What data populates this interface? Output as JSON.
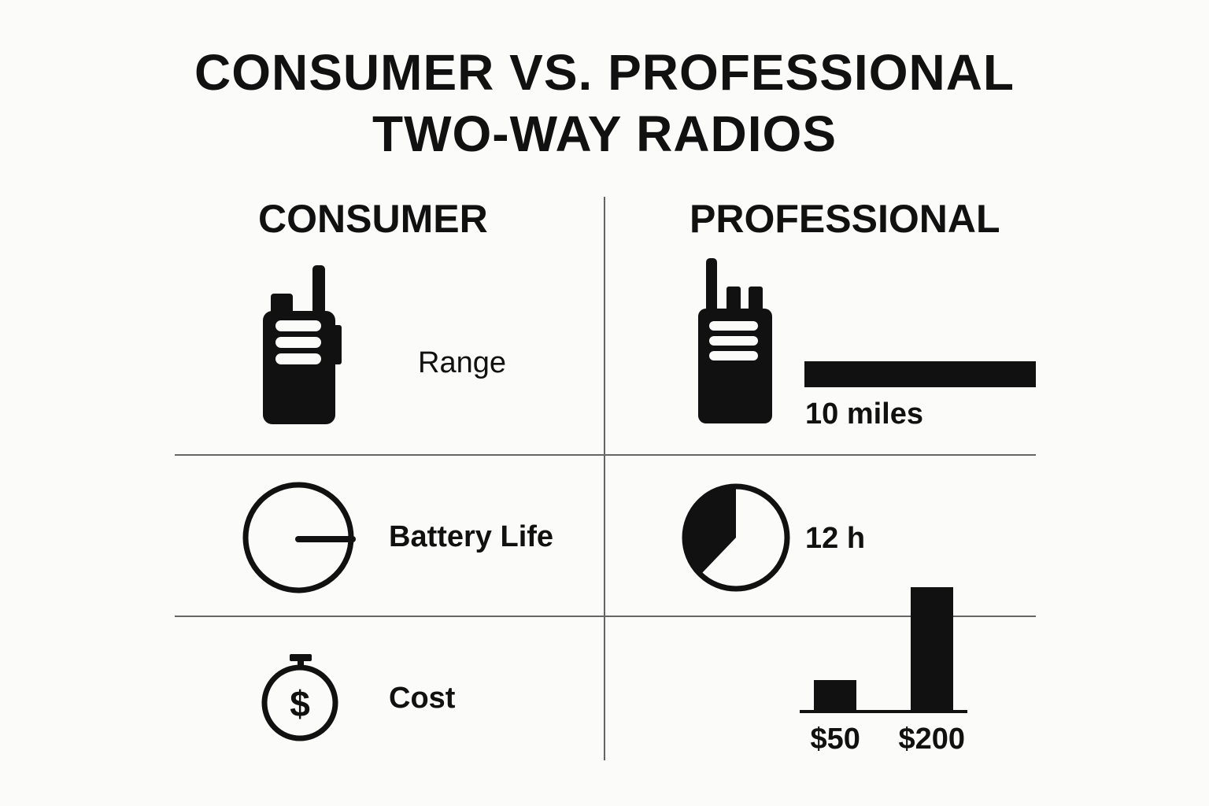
{
  "title": {
    "line1": "CONSUMER VS. PROFESSIONAL",
    "line2": "TWO-WAY RADIOS"
  },
  "columns": {
    "consumer": "CONSUMER",
    "professional": "PROFESSIONAL"
  },
  "rows": {
    "range": {
      "label": "Range",
      "professional_value": "10 miles",
      "icon": "walkie-talkie-icon"
    },
    "battery": {
      "label": "Battery Life",
      "professional_value": "12 h",
      "icon": "clock-icon"
    },
    "cost": {
      "label": "Cost",
      "icon": "stopwatch-dollar-icon",
      "dollar_symbol": "$"
    }
  },
  "chart_data": {
    "type": "bar",
    "categories": [
      "$50",
      "$200"
    ],
    "values": [
      50,
      200
    ],
    "ylim": [
      0,
      200
    ]
  },
  "colors": {
    "foreground": "#111111",
    "background": "#fbfbf9",
    "divider": "#666666"
  }
}
